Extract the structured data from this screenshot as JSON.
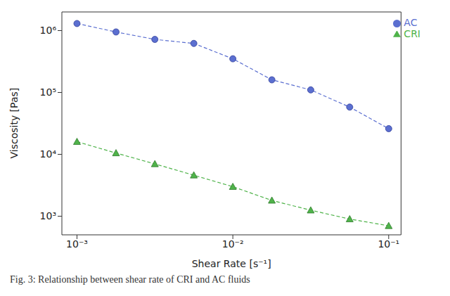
{
  "chart_data": {
    "type": "line",
    "caption": "Fig. 3: Relationship between shear rate of CRI and AC fluids",
    "x_label": "Shear Rate [s⁻¹]",
    "y_label": "Viscosity [Pas]",
    "log": true,
    "grid": false,
    "legend": "upper right",
    "x": [
      0.001,
      0.00178,
      0.00316,
      0.00562,
      0.01,
      0.0178,
      0.0316,
      0.0562,
      0.1
    ],
    "xlim": [
      0.0008,
      0.12
    ],
    "xticks": [
      {
        "value": 0.001,
        "label": "10⁻³"
      },
      {
        "value": 0.01,
        "label": "10⁻²"
      },
      {
        "value": 0.1,
        "label": "10⁻¹"
      }
    ],
    "ylim": [
      500,
      2000000
    ],
    "yticks": [
      {
        "value": 1000,
        "label": "10³"
      },
      {
        "value": 10000,
        "label": "10⁴"
      },
      {
        "value": 100000,
        "label": "10⁵"
      },
      {
        "value": 1000000,
        "label": "10⁶"
      }
    ],
    "series": [
      {
        "name": "AC",
        "color": "#5b6fd0",
        "marker": "circle",
        "line_style": "dashed",
        "values": [
          1300000,
          950000,
          720000,
          620000,
          350000,
          160000,
          110000,
          58000,
          26000
        ]
      },
      {
        "name": "CRI",
        "color": "#4fb34a",
        "marker": "triangle",
        "line_style": "dashed",
        "values": [
          16000,
          10500,
          7000,
          4600,
          3000,
          1800,
          1250,
          900,
          700
        ]
      }
    ]
  }
}
